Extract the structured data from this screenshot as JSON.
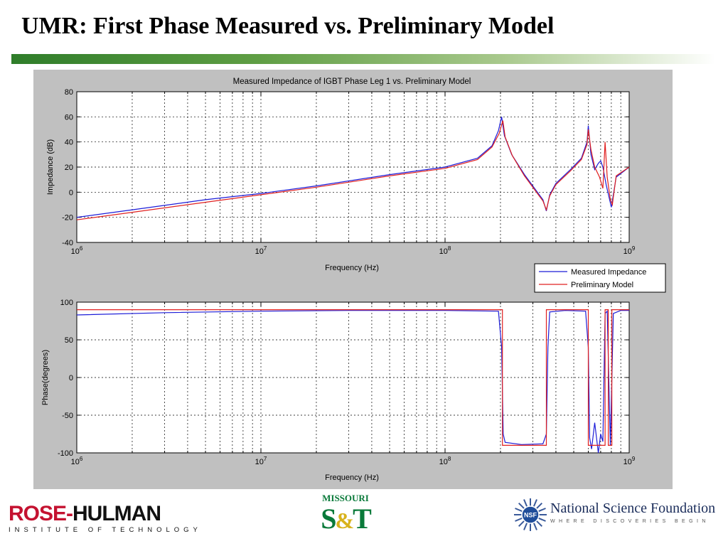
{
  "slide": {
    "title": "UMR: First Phase Measured vs. Preliminary Model"
  },
  "colors": {
    "measured": "#1c1cd8",
    "model": "#e02020",
    "figure_bg": "#c0c0c0",
    "accent_green": "#2f7d2a"
  },
  "chart_data": [
    {
      "type": "line",
      "title": "Measured Impedance of IGBT Phase Leg 1 vs. Preliminary Model",
      "xlabel": "Frequency (Hz)",
      "ylabel": "Impedance (dB)",
      "xscale": "log",
      "xlim": [
        1000000,
        1000000000
      ],
      "ylim": [
        -40,
        80
      ],
      "y_ticks": [
        -40,
        -20,
        0,
        20,
        40,
        60,
        80
      ],
      "x_ticks": [
        {
          "base": "10",
          "exp": "6",
          "value": 1000000
        },
        {
          "base": "10",
          "exp": "7",
          "value": 10000000
        },
        {
          "base": "10",
          "exp": "8",
          "value": 100000000
        },
        {
          "base": "10",
          "exp": "9",
          "value": 1000000000
        }
      ],
      "grid": true,
      "legend": {
        "placement": "below-right",
        "entries": [
          "Measured Impedance",
          "Preliminary Model"
        ]
      },
      "series": [
        {
          "name": "Measured Impedance",
          "color": "#1c1cd8",
          "x": [
            1000000,
            2000000,
            5000000,
            10000000,
            20000000,
            50000000,
            100000000,
            150000000,
            180000000,
            195000000,
            203000000,
            210000000,
            230000000,
            270000000,
            310000000,
            340000000,
            355000000,
            370000000,
            400000000,
            480000000,
            550000000,
            590000000,
            600000000,
            620000000,
            650000000,
            680000000,
            700000000,
            720000000,
            750000000,
            780000000,
            800000000,
            850000000,
            1000000000
          ],
          "y": [
            -20,
            -14,
            -6,
            -1,
            5,
            14,
            20,
            27,
            37,
            49,
            60,
            45,
            30,
            14,
            2,
            -6,
            -15,
            -2,
            7,
            18,
            27,
            40,
            53,
            30,
            18,
            23,
            25,
            20,
            6,
            -5,
            -12,
            12,
            20
          ]
        },
        {
          "name": "Preliminary Model",
          "color": "#e02020",
          "x": [
            1000000,
            2000000,
            5000000,
            10000000,
            20000000,
            50000000,
            100000000,
            150000000,
            180000000,
            197000000,
            206000000,
            212000000,
            232000000,
            270000000,
            310000000,
            340000000,
            355000000,
            370000000,
            400000000,
            480000000,
            550000000,
            590000000,
            600000000,
            620000000,
            650000000,
            690000000,
            720000000,
            740000000,
            760000000,
            790000000,
            810000000,
            850000000,
            1000000000
          ],
          "y": [
            -22,
            -16,
            -8,
            -2,
            4,
            13,
            19,
            26,
            36,
            47,
            57,
            44,
            29,
            13,
            1,
            -7,
            -14,
            -3,
            6,
            17,
            26,
            38,
            50,
            34,
            20,
            12,
            3,
            40,
            12,
            -6,
            -10,
            13,
            20
          ]
        }
      ]
    },
    {
      "type": "line",
      "title": "",
      "xlabel": "Frequency (Hz)",
      "ylabel": "Phase(degrees)",
      "xscale": "log",
      "xlim": [
        1000000,
        1000000000
      ],
      "ylim": [
        -100,
        100
      ],
      "y_ticks": [
        -100,
        -50,
        0,
        50,
        100
      ],
      "x_ticks": [
        {
          "base": "10",
          "exp": "6",
          "value": 1000000
        },
        {
          "base": "10",
          "exp": "7",
          "value": 10000000
        },
        {
          "base": "10",
          "exp": "8",
          "value": 100000000
        },
        {
          "base": "10",
          "exp": "9",
          "value": 1000000000
        }
      ],
      "grid": true,
      "series": [
        {
          "name": "Measured Impedance",
          "color": "#1c1cd8",
          "x": [
            1000000,
            3000000,
            10000000,
            30000000,
            100000000,
            195000000,
            203000000,
            207000000,
            212000000,
            260000000,
            340000000,
            355000000,
            362000000,
            370000000,
            450000000,
            580000000,
            600000000,
            610000000,
            625000000,
            650000000,
            680000000,
            700000000,
            720000000,
            740000000,
            760000000,
            790000000,
            820000000,
            900000000,
            1000000000
          ],
          "y": [
            83,
            86,
            88,
            89,
            89,
            88,
            40,
            -75,
            -86,
            -89,
            -88,
            -75,
            40,
            87,
            89,
            88,
            40,
            -80,
            -95,
            -60,
            -100,
            -75,
            -85,
            85,
            88,
            -90,
            85,
            89,
            89
          ]
        },
        {
          "name": "Preliminary Model",
          "color": "#e02020",
          "x": [
            1000000,
            100000000,
            205000000,
            205000001,
            355000000,
            355000001,
            600000000,
            600000001,
            740000000,
            740000001,
            770000000,
            770000001,
            805000000,
            805000001,
            1000000000
          ],
          "y": [
            90,
            90,
            90,
            -90,
            -90,
            90,
            90,
            -90,
            -90,
            90,
            90,
            -90,
            -90,
            90,
            90
          ]
        }
      ]
    }
  ],
  "logos": {
    "rose_hulman": {
      "main_red": "ROSE-",
      "main_dark": "HULMAN",
      "sub": "INSTITUTE OF TECHNOLOGY"
    },
    "missouri_st": {
      "top": "MISSOURI",
      "mark_s": "S",
      "mark_amp": "&",
      "mark_t": "T"
    },
    "nsf": {
      "badge": "NSF",
      "name": "National Science Foundation",
      "tagline": "WHERE DISCOVERIES BEGIN"
    }
  }
}
